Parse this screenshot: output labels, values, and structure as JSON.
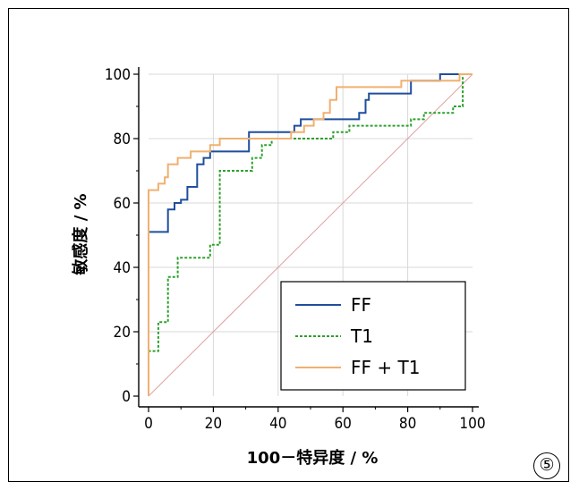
{
  "chart_data": {
    "type": "line",
    "xlabel": "100－特异度 / %",
    "ylabel": "敏感度 / %",
    "xlim": [
      0,
      100
    ],
    "ylim": [
      0,
      100
    ],
    "x_ticks": [
      "0",
      "20",
      "40",
      "60",
      "80",
      "100"
    ],
    "y_ticks": [
      "0",
      "20",
      "40",
      "60",
      "80",
      "100"
    ],
    "grid": true,
    "legend_position": "bottom-right",
    "series": [
      {
        "name": "FF",
        "color": "#1f4e9c",
        "style": "solid",
        "points": [
          [
            0,
            0
          ],
          [
            0,
            51
          ],
          [
            6,
            51
          ],
          [
            6,
            58
          ],
          [
            8,
            58
          ],
          [
            8,
            60
          ],
          [
            10,
            60
          ],
          [
            10,
            61
          ],
          [
            12,
            61
          ],
          [
            12,
            65
          ],
          [
            15,
            65
          ],
          [
            15,
            72
          ],
          [
            17,
            72
          ],
          [
            17,
            74
          ],
          [
            19,
            74
          ],
          [
            19,
            76
          ],
          [
            31,
            76
          ],
          [
            31,
            82
          ],
          [
            45,
            82
          ],
          [
            45,
            84
          ],
          [
            47,
            84
          ],
          [
            47,
            86
          ],
          [
            65,
            86
          ],
          [
            65,
            88
          ],
          [
            67,
            88
          ],
          [
            67,
            92
          ],
          [
            68,
            92
          ],
          [
            68,
            94
          ],
          [
            81,
            94
          ],
          [
            81,
            98
          ],
          [
            90,
            98
          ],
          [
            90,
            100
          ],
          [
            100,
            100
          ]
        ]
      },
      {
        "name": "T1",
        "color": "#2ca02c",
        "style": "dashed",
        "points": [
          [
            0,
            0
          ],
          [
            0,
            14
          ],
          [
            3,
            14
          ],
          [
            3,
            23
          ],
          [
            6,
            23
          ],
          [
            6,
            37
          ],
          [
            9,
            37
          ],
          [
            9,
            43
          ],
          [
            19,
            43
          ],
          [
            19,
            47
          ],
          [
            22,
            47
          ],
          [
            22,
            70
          ],
          [
            32,
            70
          ],
          [
            32,
            74
          ],
          [
            35,
            74
          ],
          [
            35,
            78
          ],
          [
            38,
            78
          ],
          [
            38,
            80
          ],
          [
            57,
            80
          ],
          [
            57,
            82
          ],
          [
            62,
            82
          ],
          [
            62,
            84
          ],
          [
            81,
            84
          ],
          [
            81,
            86
          ],
          [
            85,
            86
          ],
          [
            85,
            88
          ],
          [
            94,
            88
          ],
          [
            94,
            90
          ],
          [
            97,
            90
          ],
          [
            97,
            100
          ],
          [
            100,
            100
          ]
        ]
      },
      {
        "name": "FF + T1",
        "color": "#f0b070",
        "style": "solid",
        "points": [
          [
            0,
            0
          ],
          [
            0,
            64
          ],
          [
            3,
            64
          ],
          [
            3,
            66
          ],
          [
            5,
            66
          ],
          [
            5,
            68
          ],
          [
            6,
            68
          ],
          [
            6,
            72
          ],
          [
            9,
            72
          ],
          [
            9,
            74
          ],
          [
            13,
            74
          ],
          [
            13,
            76
          ],
          [
            19,
            76
          ],
          [
            19,
            78
          ],
          [
            22,
            78
          ],
          [
            22,
            80
          ],
          [
            44,
            80
          ],
          [
            44,
            82
          ],
          [
            48,
            82
          ],
          [
            48,
            84
          ],
          [
            51,
            84
          ],
          [
            51,
            86
          ],
          [
            54,
            86
          ],
          [
            54,
            88
          ],
          [
            56,
            88
          ],
          [
            56,
            92
          ],
          [
            58,
            92
          ],
          [
            58,
            96
          ],
          [
            78,
            96
          ],
          [
            78,
            98
          ],
          [
            96,
            98
          ],
          [
            96,
            100
          ],
          [
            100,
            100
          ]
        ]
      },
      {
        "name": "reference",
        "color": "#e0a0a0",
        "style": "solid",
        "points": [
          [
            0,
            0
          ],
          [
            100,
            100
          ]
        ]
      }
    ]
  },
  "panel_label": "⑤"
}
